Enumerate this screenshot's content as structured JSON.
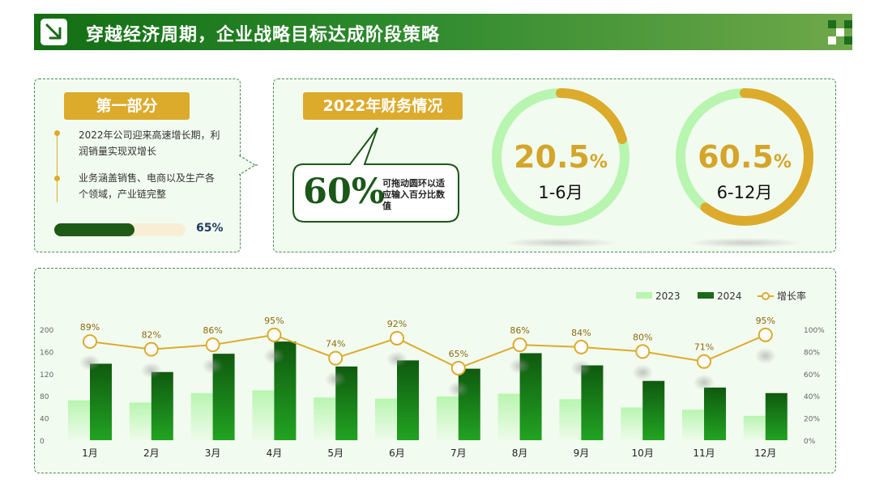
{
  "header": {
    "title": "穿越经济周期，企业战略目标达成阶段策略",
    "icon": "arrow-down-right-icon"
  },
  "part": {
    "title": "第一部分",
    "bullets": [
      "2022年公司迎来高速增长期，利润销量实现双增长",
      "业务涵盖销售、电商以及生产各个领域，产业链完整"
    ],
    "progress": {
      "value": 65,
      "text": "65%"
    }
  },
  "finance": {
    "title": "2022年财务情况",
    "callout": {
      "value": "60%",
      "note": "可拖动圆环以适应输入百分比数值"
    },
    "rings": [
      {
        "value": "20.5",
        "unit": "%",
        "percent": 20.5,
        "label": "1-6月"
      },
      {
        "value": "60.5",
        "unit": "%",
        "percent": 60.5,
        "label": "6-12月"
      }
    ]
  },
  "colors": {
    "primary": "#1a7a1a",
    "accent": "#dcab2c",
    "light_green": "#b8f5b0",
    "panel_bg": "#f2fbef"
  },
  "chart_data": {
    "type": "bar",
    "categories": [
      "1月",
      "2月",
      "3月",
      "4月",
      "5月",
      "6月",
      "7月",
      "8月",
      "9月",
      "10月",
      "11月",
      "12月"
    ],
    "series": [
      {
        "name": "2023",
        "type": "bar",
        "axis": "left",
        "values": [
          72,
          68,
          85,
          90,
          77,
          75,
          79,
          84,
          74,
          59,
          55,
          44
        ]
      },
      {
        "name": "2024",
        "type": "bar",
        "axis": "left",
        "values": [
          138,
          123,
          156,
          178,
          133,
          144,
          129,
          157,
          135,
          107,
          95,
          85
        ]
      },
      {
        "name": "增长率",
        "type": "line",
        "axis": "right",
        "values": [
          89,
          82,
          86,
          95,
          74,
          92,
          65,
          86,
          84,
          80,
          71,
          95
        ],
        "labels": [
          "89%",
          "82%",
          "86%",
          "95%",
          "74%",
          "92%",
          "65%",
          "86%",
          "84%",
          "80%",
          "71%",
          "95%"
        ]
      }
    ],
    "yleft": {
      "ticks": [
        "0",
        "40",
        "80",
        "120",
        "160",
        "200"
      ],
      "lim": [
        0,
        200
      ]
    },
    "yright": {
      "ticks": [
        "0%",
        "20%",
        "40%",
        "60%",
        "80%",
        "100%"
      ],
      "lim": [
        0,
        100
      ]
    },
    "legend": {
      "position": "top-right",
      "items": [
        "2023",
        "2024",
        "增长率"
      ]
    },
    "grid": false
  }
}
